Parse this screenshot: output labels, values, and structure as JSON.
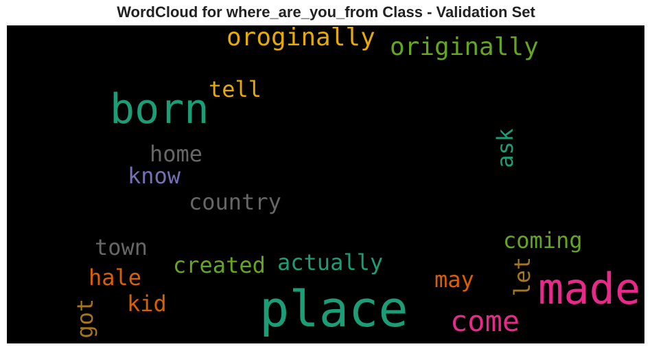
{
  "chart_data": {
    "type": "wordcloud",
    "title": "WordCloud for where_are_you_from Class - Validation Set",
    "background": "#000000",
    "palette": "Dark2",
    "words": [
      {
        "text": "place",
        "color": "#1b9e77"
      },
      {
        "text": "made",
        "color": "#e7298a"
      },
      {
        "text": "born",
        "color": "#1b9e77"
      },
      {
        "text": "come",
        "color": "#e7298a"
      },
      {
        "text": "originally",
        "color": "#66a61e"
      },
      {
        "text": "oroginally",
        "color": "#e6ab02"
      },
      {
        "text": "tell",
        "color": "#e6ab02"
      },
      {
        "text": "home",
        "color": "#666666"
      },
      {
        "text": "know",
        "color": "#7570b3"
      },
      {
        "text": "country",
        "color": "#666666"
      },
      {
        "text": "ask",
        "color": "#1b9e77"
      },
      {
        "text": "coming",
        "color": "#66a61e"
      },
      {
        "text": "actually",
        "color": "#1b9e77"
      },
      {
        "text": "created",
        "color": "#66a61e"
      },
      {
        "text": "town",
        "color": "#666666"
      },
      {
        "text": "hale",
        "color": "#d95f02"
      },
      {
        "text": "kid",
        "color": "#d95f02"
      },
      {
        "text": "got",
        "color": "#a6761d"
      },
      {
        "text": "may",
        "color": "#d95f02"
      },
      {
        "text": "let",
        "color": "#a6761d"
      }
    ]
  }
}
